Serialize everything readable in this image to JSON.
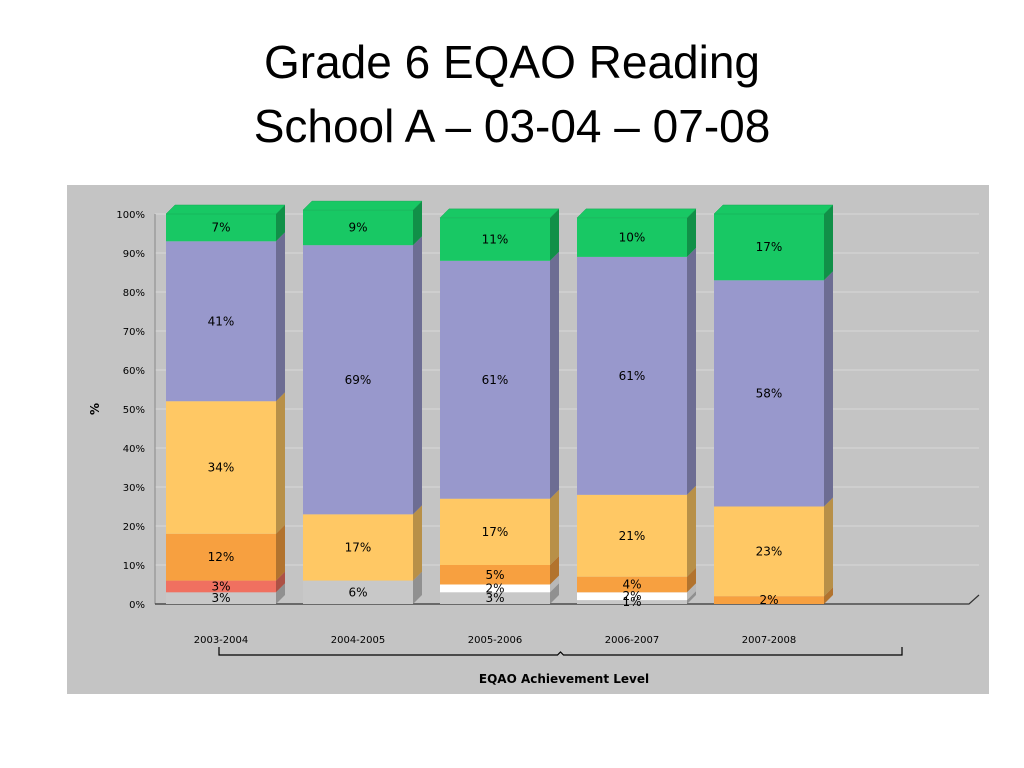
{
  "slide": {
    "title_line1": "Grade 6 EQAO Reading",
    "title_line2": "School A – 03-04 – 07-08"
  },
  "chart_data": {
    "type": "bar",
    "stacked": true,
    "ylabel": "%",
    "xlabel": "EQAO Achievement Level",
    "ylim": [
      0,
      100
    ],
    "yticks": [
      "0%",
      "10%",
      "20%",
      "30%",
      "40%",
      "50%",
      "60%",
      "70%",
      "80%",
      "90%",
      "100%"
    ],
    "categories": [
      "2003-2004",
      "2004-2005",
      "2005-2006",
      "2006-2007",
      "2007-2008"
    ],
    "legend": "none",
    "series": [
      {
        "color": "#c8c8c8",
        "values": [
          3,
          6,
          3,
          1,
          0
        ],
        "labels": [
          "3%",
          "6%",
          "3%",
          "1%",
          ""
        ]
      },
      {
        "color": "#ffffff",
        "values": [
          0,
          0,
          2,
          2,
          0
        ],
        "labels": [
          "",
          "",
          "2%",
          "2%",
          ""
        ]
      },
      {
        "color": "#f07060",
        "values": [
          3,
          0,
          0,
          0,
          0
        ],
        "labels": [
          "3%",
          "",
          "",
          "",
          ""
        ]
      },
      {
        "color": "#f7a040",
        "values": [
          12,
          0,
          5,
          4,
          2
        ],
        "labels": [
          "12%",
          "",
          "5%",
          "4%",
          "2%"
        ]
      },
      {
        "color": "#ffc864",
        "values": [
          34,
          17,
          17,
          21,
          23
        ],
        "labels": [
          "34%",
          "17%",
          "17%",
          "21%",
          "23%"
        ]
      },
      {
        "color": "#9898cc",
        "values": [
          41,
          69,
          61,
          61,
          58
        ],
        "labels": [
          "41%",
          "69%",
          "61%",
          "61%",
          "58%"
        ]
      },
      {
        "color": "#18c864",
        "values": [
          7,
          9,
          11,
          10,
          17
        ],
        "labels": [
          "7%",
          "9%",
          "11%",
          "10%",
          "17%"
        ]
      }
    ]
  }
}
